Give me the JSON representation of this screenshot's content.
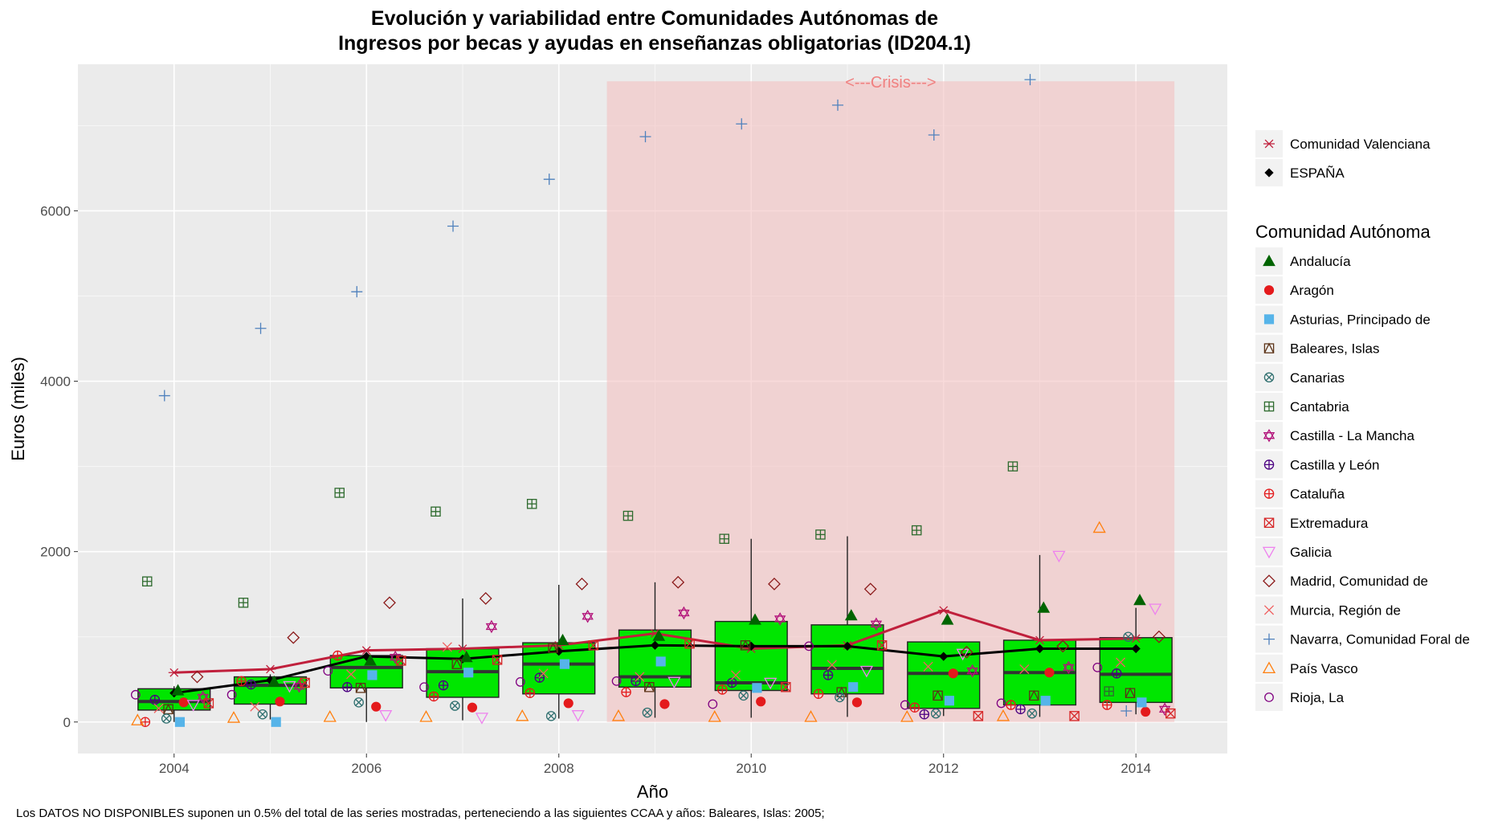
{
  "title_line1": "Evolución y variabilidad entre Comunidades Autónomas de",
  "title_line2": "Ingresos por becas y ayudas en enseñanzas obligatorias (ID204.1)",
  "footnote": "Los DATOS NO DISPONIBLES suponen un 0.5% del total de las series mostradas, perteneciendo a las siguientes CCAA y años: Baleares, Islas: 2005;",
  "chart_data": {
    "type": "box",
    "title": "Evolución y variabilidad entre Comunidades Autónomas de Ingresos por becas y ayudas en enseñanzas obligatorias (ID204.1)",
    "xlabel": "Año",
    "ylabel": "Euros (miles)",
    "xlim": [
      2003.0,
      2014.95
    ],
    "ylim": [
      -370,
      7720
    ],
    "x_ticks": [
      2004,
      2006,
      2008,
      2010,
      2012,
      2014
    ],
    "y_ticks": [
      0,
      2000,
      4000,
      6000
    ],
    "grid": true,
    "legend_position": "right",
    "crisis": {
      "label": "<---Crisis--->",
      "x_start": 2008.5,
      "x_end": 2014.4,
      "y_top": 7520,
      "color": "#f4c2c2"
    },
    "box_color": "#00e600",
    "boxes": [
      {
        "x": 2004,
        "whisker_low": 0,
        "q1": 140,
        "median": 240,
        "q3": 390,
        "whisker_high": 420
      },
      {
        "x": 2005,
        "whisker_low": 30,
        "q1": 210,
        "median": 430,
        "q3": 530,
        "whisker_high": 560
      },
      {
        "x": 2006,
        "whisker_low": 0,
        "q1": 400,
        "median": 640,
        "q3": 780,
        "whisker_high": 820
      },
      {
        "x": 2007,
        "whisker_low": 20,
        "q1": 290,
        "median": 590,
        "q3": 860,
        "whisker_high": 1450
      },
      {
        "x": 2008,
        "whisker_low": 40,
        "q1": 330,
        "median": 680,
        "q3": 930,
        "whisker_high": 1610
      },
      {
        "x": 2009,
        "whisker_low": 50,
        "q1": 410,
        "median": 530,
        "q3": 1080,
        "whisker_high": 1640
      },
      {
        "x": 2010,
        "whisker_low": 50,
        "q1": 370,
        "median": 460,
        "q3": 1180,
        "whisker_high": 2150
      },
      {
        "x": 2011,
        "whisker_low": 60,
        "q1": 330,
        "median": 630,
        "q3": 1140,
        "whisker_high": 2180
      },
      {
        "x": 2012,
        "whisker_low": 70,
        "q1": 160,
        "median": 570,
        "q3": 940,
        "whisker_high": 940
      },
      {
        "x": 2013,
        "whisker_low": 60,
        "q1": 200,
        "median": 580,
        "q3": 960,
        "whisker_high": 1960
      },
      {
        "x": 2014,
        "whisker_low": 90,
        "q1": 230,
        "median": 560,
        "q3": 990,
        "whisker_high": 1340
      }
    ],
    "lines": [
      {
        "name": "Comunidad Valenciana",
        "color": "#c0203c",
        "marker": "asterisk",
        "x": [
          2004,
          2005,
          2006,
          2007,
          2008,
          2009,
          2010,
          2011,
          2012,
          2013,
          2014
        ],
        "y": [
          580,
          620,
          840,
          860,
          900,
          1040,
          860,
          900,
          1310,
          960,
          980
        ]
      },
      {
        "name": "ESPAÑA",
        "color": "#000000",
        "marker": "diamond-filled",
        "x": [
          2004,
          2005,
          2006,
          2007,
          2008,
          2009,
          2010,
          2011,
          2012,
          2013,
          2014
        ],
        "y": [
          340,
          490,
          770,
          740,
          830,
          900,
          890,
          890,
          770,
          860,
          860
        ]
      }
    ],
    "legend_title": "Comunidad Autónoma",
    "series": [
      {
        "name": "Andalucía",
        "color": "#006400",
        "marker": "triangle-filled",
        "dx": 0.04,
        "x": [
          2004,
          2005,
          2006,
          2007,
          2008,
          2009,
          2010,
          2011,
          2012,
          2013,
          2014
        ],
        "y": [
          370,
          470,
          720,
          760,
          960,
          1010,
          1200,
          1250,
          1200,
          1340,
          1430
        ]
      },
      {
        "name": "Aragón",
        "color": "#e41a1c",
        "marker": "circle-filled",
        "dx": 0.1,
        "x": [
          2004,
          2005,
          2006,
          2007,
          2008,
          2009,
          2010,
          2011,
          2012,
          2013,
          2014
        ],
        "y": [
          230,
          240,
          180,
          170,
          220,
          210,
          240,
          230,
          570,
          580,
          120
        ]
      },
      {
        "name": "Asturias, Principado de",
        "color": "#56b4e9",
        "marker": "square-filled",
        "dx": 0.06,
        "x": [
          2004,
          2005,
          2006,
          2007,
          2008,
          2009,
          2010,
          2011,
          2012,
          2013,
          2014
        ],
        "y": [
          0,
          0,
          550,
          580,
          680,
          710,
          400,
          410,
          250,
          250,
          230
        ]
      },
      {
        "name": "Baleares, Islas",
        "color": "#5c3317",
        "marker": "square-triangle",
        "dx": -0.06,
        "x": [
          2004,
          2006,
          2007,
          2008,
          2009,
          2010,
          2011,
          2012,
          2013,
          2014
        ],
        "y": [
          150,
          400,
          680,
          870,
          410,
          900,
          350,
          310,
          310,
          340
        ]
      },
      {
        "name": "Canarias",
        "color": "#2f6f6f",
        "marker": "circle-x",
        "dx": -0.08,
        "x": [
          2004,
          2005,
          2006,
          2007,
          2008,
          2009,
          2010,
          2011,
          2012,
          2013,
          2014
        ],
        "y": [
          40,
          90,
          230,
          190,
          70,
          110,
          310,
          290,
          100,
          100,
          1000
        ]
      },
      {
        "name": "Cantabria",
        "color": "#2e6b2e",
        "marker": "square-plus",
        "dx": -0.28,
        "x": [
          2004,
          2005,
          2006,
          2007,
          2008,
          2009,
          2010,
          2011,
          2012,
          2013,
          2014
        ],
        "y": [
          1650,
          1400,
          2690,
          2470,
          2560,
          2420,
          2150,
          2200,
          2250,
          3000,
          360
        ]
      },
      {
        "name": "Castilla - La Mancha",
        "color": "#b2127a",
        "marker": "star-david",
        "dx": 0.3,
        "x": [
          2004,
          2005,
          2006,
          2007,
          2008,
          2009,
          2010,
          2011,
          2012,
          2013,
          2014
        ],
        "y": [
          290,
          420,
          760,
          1120,
          1240,
          1280,
          1210,
          1150,
          600,
          640,
          150
        ]
      },
      {
        "name": "Castilla y León",
        "color": "#4b0082",
        "marker": "circle-plus",
        "dx": -0.2,
        "x": [
          2004,
          2005,
          2006,
          2007,
          2008,
          2009,
          2010,
          2011,
          2012,
          2013,
          2014
        ],
        "y": [
          260,
          440,
          410,
          430,
          520,
          480,
          460,
          550,
          90,
          150,
          570
        ]
      },
      {
        "name": "Cataluña",
        "color": "#e41a1c",
        "marker": "circle-plus",
        "dx": -0.3,
        "x": [
          2004,
          2005,
          2006,
          2007,
          2008,
          2009,
          2010,
          2011,
          2012,
          2013,
          2014
        ],
        "y": [
          0,
          480,
          780,
          300,
          340,
          350,
          380,
          330,
          170,
          200,
          200
        ]
      },
      {
        "name": "Extremadura",
        "color": "#d62728",
        "marker": "square-x",
        "dx": 0.36,
        "x": [
          2004,
          2005,
          2006,
          2007,
          2008,
          2009,
          2010,
          2011,
          2012,
          2013,
          2014
        ],
        "y": [
          220,
          460,
          720,
          730,
          900,
          920,
          410,
          900,
          70,
          70,
          100
        ]
      },
      {
        "name": "Galicia",
        "color": "#ee82ee",
        "marker": "triangle-down",
        "dx": 0.2,
        "x": [
          2004,
          2005,
          2006,
          2007,
          2008,
          2009,
          2010,
          2011,
          2012,
          2013,
          2014
        ],
        "y": [
          200,
          420,
          80,
          50,
          80,
          470,
          460,
          600,
          800,
          1950,
          1330
        ]
      },
      {
        "name": "Madrid, Comunidad de",
        "color": "#8b1a1a",
        "marker": "diamond",
        "dx": 0.24,
        "x": [
          2004,
          2005,
          2006,
          2007,
          2008,
          2009,
          2010,
          2011,
          2012,
          2013,
          2014
        ],
        "y": [
          530,
          990,
          1400,
          1450,
          1620,
          1640,
          1620,
          1560,
          820,
          890,
          1000
        ]
      },
      {
        "name": "Murcia, Región de",
        "color": "#f06060",
        "marker": "x",
        "dx": -0.16,
        "x": [
          2004,
          2005,
          2006,
          2007,
          2008,
          2009,
          2010,
          2011,
          2012,
          2013,
          2014
        ],
        "y": [
          160,
          180,
          560,
          880,
          570,
          530,
          550,
          670,
          650,
          620,
          700
        ]
      },
      {
        "name": "Navarra, Comunidad Foral de",
        "color": "#4f81bd",
        "marker": "plus",
        "dx": -0.1,
        "x": [
          2004,
          2005,
          2006,
          2007,
          2008,
          2009,
          2010,
          2011,
          2012,
          2013,
          2014
        ],
        "y": [
          3830,
          4620,
          5050,
          5820,
          6370,
          6870,
          7020,
          7240,
          6890,
          7540,
          130
        ]
      },
      {
        "name": "País Vasco",
        "color": "#ff7f0e",
        "marker": "triangle",
        "dx": -0.38,
        "x": [
          2004,
          2005,
          2006,
          2007,
          2008,
          2009,
          2010,
          2011,
          2012,
          2013,
          2014
        ],
        "y": [
          20,
          50,
          60,
          60,
          70,
          70,
          60,
          60,
          60,
          70,
          2280
        ]
      },
      {
        "name": "Rioja, La",
        "color": "#800080",
        "marker": "circle",
        "dx": -0.4,
        "x": [
          2004,
          2005,
          2006,
          2007,
          2008,
          2009,
          2010,
          2011,
          2012,
          2013,
          2014
        ],
        "y": [
          320,
          320,
          600,
          410,
          470,
          480,
          210,
          890,
          200,
          220,
          640
        ]
      }
    ]
  }
}
